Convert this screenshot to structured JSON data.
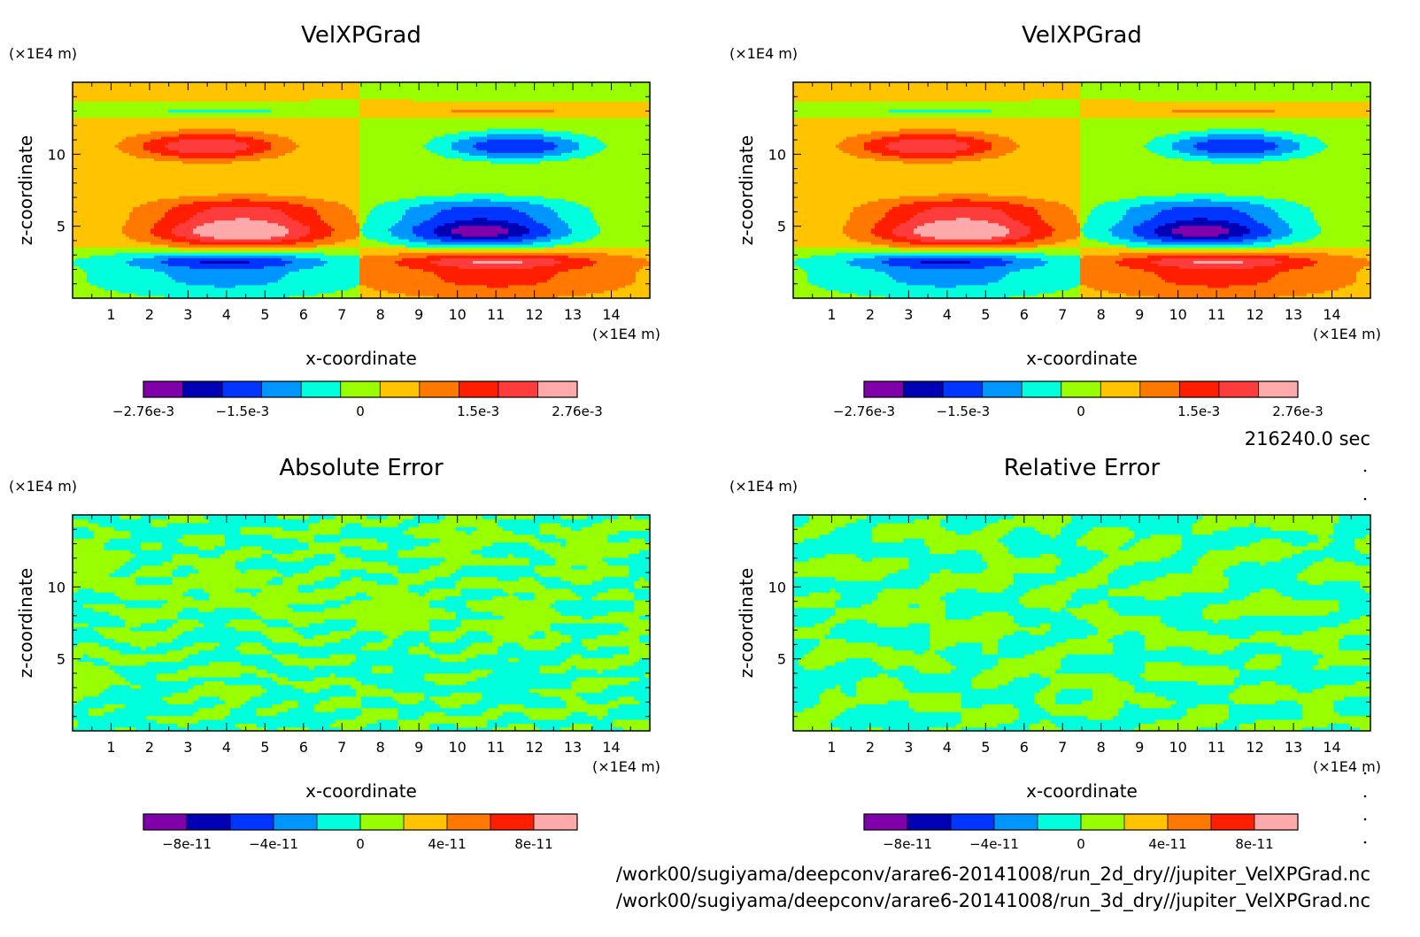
{
  "time_label": "216240.0 sec",
  "footer_lines": [
    "/work00/sugiyama/deepconv/arare6-20141008/run_2d_dry//jupiter_VelXPGrad.nc",
    "/work00/sugiyama/deepconv/arare6-20141008/run_3d_dry//jupiter_VelXPGrad.nc"
  ],
  "palette": [
    "#8000aa",
    "#0000b4",
    "#0035ff",
    "#0096ff",
    "#00ffdd",
    "#99ff00",
    "#ffc300",
    "#ff7800",
    "#ff1e00",
    "#ff3c3c",
    "#ffaaaa"
  ],
  "chart_data": [
    {
      "type": "heatmap",
      "field": "VelXPGrad",
      "title": "VelXPGrad",
      "xlabel": "x-coordinate",
      "ylabel": "z-coordinate",
      "x_unit": "(×1E4 m)",
      "y_unit": "(×1E4 m)",
      "xlim": [
        0,
        15
      ],
      "ylim": [
        0,
        15
      ],
      "x_ticks": [
        "1",
        "2",
        "3",
        "4",
        "5",
        "6",
        "7",
        "8",
        "9",
        "10",
        "11",
        "12",
        "13",
        "14"
      ],
      "y_ticks": [
        "5",
        "10"
      ],
      "colorbar_ticks": [
        "-2.76e-3",
        "-1.5e-3",
        "0",
        "1.5e-3",
        "2.76e-3"
      ],
      "colorbar_range": [
        -0.00276,
        0.00276
      ],
      "colorbar_levels": 11
    },
    {
      "type": "heatmap",
      "field": "VelXPGrad",
      "title": "VelXPGrad",
      "xlabel": "x-coordinate",
      "ylabel": "z-coordinate",
      "x_unit": "(×1E4 m)",
      "y_unit": "(×1E4 m)",
      "xlim": [
        0,
        15
      ],
      "ylim": [
        0,
        15
      ],
      "x_ticks": [
        "1",
        "2",
        "3",
        "4",
        "5",
        "6",
        "7",
        "8",
        "9",
        "10",
        "11",
        "12",
        "13",
        "14"
      ],
      "y_ticks": [
        "5",
        "10"
      ],
      "colorbar_ticks": [
        "-2.76e-3",
        "-1.5e-3",
        "0",
        "1.5e-3",
        "2.76e-3"
      ],
      "colorbar_range": [
        -0.00276,
        0.00276
      ],
      "colorbar_levels": 11
    },
    {
      "type": "heatmap",
      "field": "noise",
      "title": "Absolute Error",
      "xlabel": "x-coordinate",
      "ylabel": "z-coordinate",
      "x_unit": "(×1E4 m)",
      "y_unit": "(×1E4 m)",
      "xlim": [
        0,
        15
      ],
      "ylim": [
        0,
        15
      ],
      "x_ticks": [
        "1",
        "2",
        "3",
        "4",
        "5",
        "6",
        "7",
        "8",
        "9",
        "10",
        "11",
        "12",
        "13",
        "14"
      ],
      "y_ticks": [
        "5",
        "10"
      ],
      "colorbar_ticks": [
        "-8e-11",
        "-4e-11",
        "0",
        "4e-11",
        "8e-11"
      ],
      "colorbar_range": [
        -1e-10,
        1e-10
      ],
      "colorbar_levels": 10
    },
    {
      "type": "heatmap",
      "field": "noise",
      "title": "Relative Error",
      "xlabel": "x-coordinate",
      "ylabel": "z-coordinate",
      "x_unit": "(×1E4 m)",
      "y_unit": "(×1E4 m)",
      "xlim": [
        0,
        15
      ],
      "ylim": [
        0,
        15
      ],
      "x_ticks": [
        "1",
        "2",
        "3",
        "4",
        "5",
        "6",
        "7",
        "8",
        "9",
        "10",
        "11",
        "12",
        "13",
        "14"
      ],
      "y_ticks": [
        "5",
        "10"
      ],
      "colorbar_ticks": [
        "-8e-11",
        "-4e-11",
        "0",
        "4e-11",
        "8e-11"
      ],
      "colorbar_range": [
        -1e-10,
        1e-10
      ],
      "colorbar_levels": 10
    }
  ]
}
